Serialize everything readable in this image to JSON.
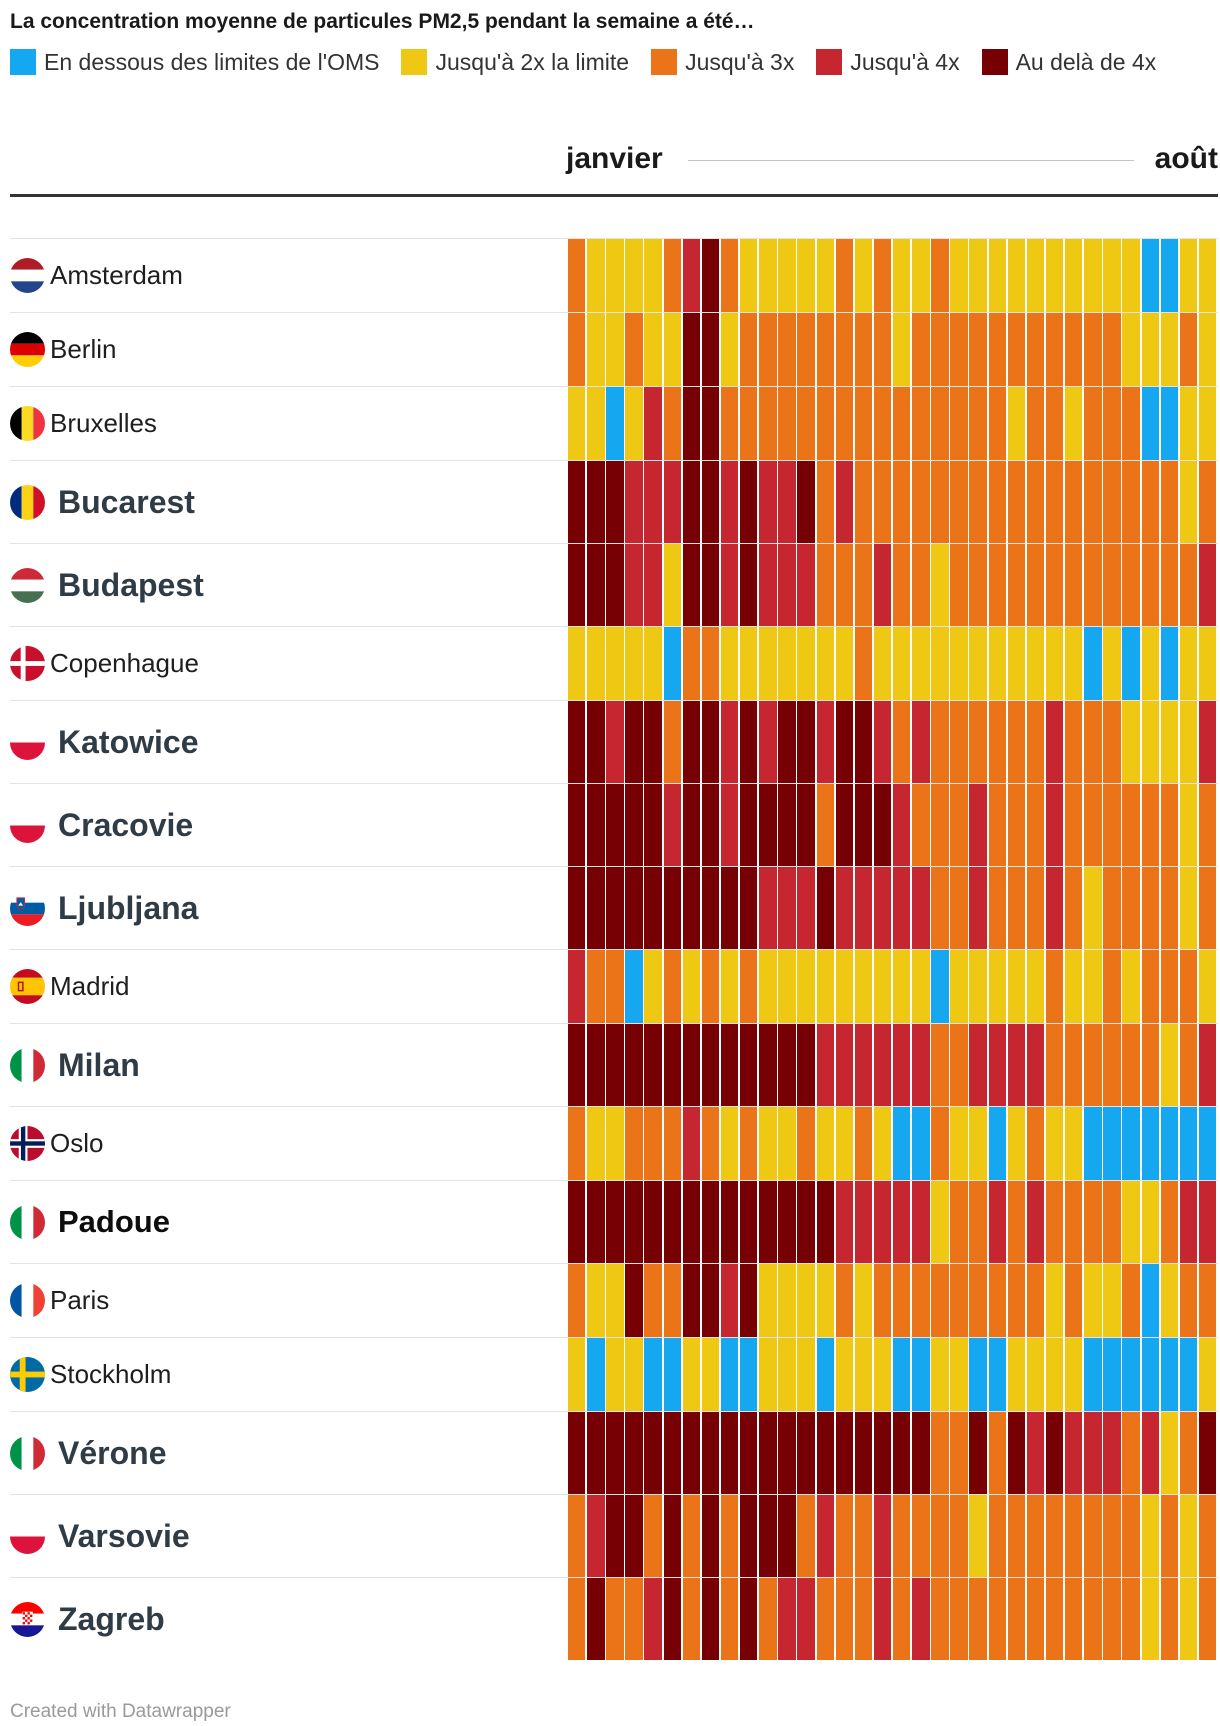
{
  "chart_data": {
    "type": "heatmap",
    "title": "La concentration moyenne de particules PM2,5 pendant la semaine a été…",
    "x_start_label": "janvier",
    "x_end_label": "août",
    "legend": [
      {
        "level": 0,
        "label": "En dessous des limites de l'OMS",
        "color": "#15a8f0"
      },
      {
        "level": 1,
        "label": "Jusqu'à 2x la limite",
        "color": "#efc813"
      },
      {
        "level": 2,
        "label": "Jusqu'à 3x",
        "color": "#ea7417"
      },
      {
        "level": 3,
        "label": "Jusqu'à 4x",
        "color": "#c6262f"
      },
      {
        "level": 4,
        "label": "Au delà de 4x",
        "color": "#760003"
      }
    ],
    "rows": [
      {
        "name": "Amsterdam",
        "flag_icon": "netherlands-flag-icon",
        "highlight": false,
        "values": [
          2,
          1,
          1,
          1,
          1,
          2,
          3,
          4,
          2,
          1,
          1,
          1,
          1,
          1,
          2,
          1,
          2,
          1,
          1,
          2,
          1,
          1,
          1,
          1,
          1,
          1,
          1,
          1,
          1,
          1,
          0,
          0,
          1,
          1
        ]
      },
      {
        "name": "Berlin",
        "flag_icon": "germany-flag-icon",
        "highlight": false,
        "values": [
          2,
          1,
          1,
          2,
          1,
          1,
          4,
          4,
          1,
          2,
          2,
          2,
          2,
          2,
          2,
          2,
          2,
          1,
          2,
          2,
          2,
          2,
          2,
          2,
          2,
          2,
          2,
          2,
          2,
          1,
          1,
          1,
          2,
          1
        ]
      },
      {
        "name": "Bruxelles",
        "flag_icon": "belgium-flag-icon",
        "highlight": false,
        "values": [
          1,
          1,
          0,
          1,
          3,
          2,
          4,
          4,
          2,
          2,
          2,
          2,
          2,
          2,
          2,
          2,
          2,
          2,
          2,
          2,
          2,
          2,
          2,
          1,
          2,
          2,
          1,
          2,
          2,
          2,
          0,
          0,
          1,
          1
        ]
      },
      {
        "name": "Bucarest",
        "flag_icon": "romania-flag-icon",
        "highlight": true,
        "values": [
          4,
          4,
          4,
          3,
          3,
          3,
          4,
          4,
          3,
          4,
          3,
          3,
          4,
          2,
          3,
          2,
          2,
          2,
          2,
          2,
          2,
          2,
          2,
          2,
          2,
          2,
          2,
          2,
          2,
          2,
          2,
          2,
          1,
          2
        ]
      },
      {
        "name": "Budapest",
        "flag_icon": "hungary-flag-icon",
        "highlight": true,
        "values": [
          4,
          4,
          4,
          3,
          3,
          1,
          4,
          4,
          3,
          4,
          3,
          3,
          3,
          2,
          2,
          2,
          3,
          2,
          2,
          1,
          2,
          2,
          2,
          2,
          2,
          2,
          2,
          2,
          2,
          2,
          2,
          2,
          2,
          3
        ]
      },
      {
        "name": "Copenhague",
        "flag_icon": "denmark-flag-icon",
        "highlight": false,
        "values": [
          1,
          1,
          1,
          1,
          1,
          0,
          2,
          2,
          1,
          1,
          1,
          1,
          1,
          1,
          1,
          2,
          1,
          1,
          1,
          1,
          1,
          1,
          1,
          1,
          1,
          1,
          1,
          0,
          1,
          0,
          1,
          0,
          1,
          1
        ]
      },
      {
        "name": "Katowice",
        "flag_icon": "poland-flag-icon",
        "highlight": true,
        "values": [
          4,
          4,
          3,
          4,
          4,
          2,
          4,
          4,
          3,
          4,
          3,
          4,
          4,
          3,
          4,
          4,
          3,
          2,
          3,
          2,
          2,
          2,
          2,
          2,
          2,
          3,
          2,
          2,
          2,
          1,
          1,
          1,
          1,
          3
        ]
      },
      {
        "name": "Cracovie",
        "flag_icon": "poland-flag-icon",
        "highlight": true,
        "values": [
          4,
          4,
          4,
          4,
          4,
          3,
          4,
          4,
          3,
          4,
          4,
          4,
          4,
          2,
          4,
          4,
          4,
          3,
          2,
          2,
          2,
          3,
          2,
          2,
          2,
          3,
          2,
          2,
          2,
          2,
          2,
          2,
          1,
          2
        ]
      },
      {
        "name": "Ljubljana",
        "flag_icon": "slovenia-flag-icon",
        "highlight": true,
        "values": [
          4,
          4,
          4,
          4,
          4,
          4,
          4,
          4,
          4,
          4,
          3,
          3,
          3,
          4,
          3,
          3,
          3,
          3,
          3,
          2,
          2,
          3,
          2,
          2,
          2,
          3,
          2,
          1,
          2,
          2,
          2,
          2,
          1,
          2
        ]
      },
      {
        "name": "Madrid",
        "flag_icon": "spain-flag-icon",
        "highlight": false,
        "values": [
          3,
          2,
          2,
          0,
          1,
          2,
          1,
          2,
          1,
          2,
          1,
          1,
          1,
          1,
          1,
          1,
          1,
          1,
          1,
          0,
          1,
          1,
          1,
          1,
          1,
          2,
          1,
          1,
          2,
          1,
          2,
          2,
          2,
          1
        ]
      },
      {
        "name": "Milan",
        "flag_icon": "italy-flag-icon",
        "highlight": true,
        "values": [
          4,
          4,
          4,
          4,
          4,
          4,
          4,
          4,
          4,
          4,
          4,
          4,
          4,
          3,
          3,
          3,
          3,
          3,
          3,
          2,
          2,
          3,
          3,
          3,
          3,
          2,
          2,
          2,
          2,
          2,
          2,
          1,
          2,
          3
        ]
      },
      {
        "name": "Oslo",
        "flag_icon": "norway-flag-icon",
        "highlight": false,
        "values": [
          2,
          1,
          1,
          2,
          2,
          2,
          3,
          2,
          1,
          2,
          1,
          1,
          2,
          1,
          1,
          2,
          1,
          0,
          0,
          2,
          1,
          1,
          0,
          1,
          2,
          1,
          1,
          0,
          0,
          0,
          0,
          0,
          0,
          0
        ]
      },
      {
        "name": "Padoue",
        "flag_icon": "italy-flag-icon",
        "highlight": true,
        "dark_label": true,
        "values": [
          4,
          4,
          4,
          4,
          4,
          4,
          4,
          4,
          4,
          4,
          4,
          4,
          4,
          4,
          3,
          3,
          3,
          3,
          3,
          1,
          2,
          2,
          3,
          2,
          3,
          2,
          2,
          2,
          2,
          1,
          1,
          2,
          3,
          3
        ]
      },
      {
        "name": "Paris",
        "flag_icon": "france-flag-icon",
        "highlight": false,
        "values": [
          2,
          1,
          1,
          4,
          2,
          2,
          4,
          4,
          3,
          4,
          1,
          1,
          1,
          1,
          2,
          1,
          2,
          2,
          2,
          2,
          2,
          2,
          2,
          2,
          2,
          1,
          2,
          1,
          1,
          2,
          0,
          1,
          2,
          2
        ]
      },
      {
        "name": "Stockholm",
        "flag_icon": "sweden-flag-icon",
        "highlight": false,
        "values": [
          1,
          0,
          1,
          1,
          0,
          0,
          1,
          1,
          0,
          0,
          1,
          1,
          1,
          0,
          1,
          1,
          1,
          0,
          0,
          1,
          1,
          0,
          0,
          1,
          1,
          1,
          1,
          0,
          0,
          0,
          0,
          0,
          0,
          1
        ]
      },
      {
        "name": "Vérone",
        "flag_icon": "italy-flag-icon",
        "highlight": true,
        "values": [
          4,
          4,
          4,
          4,
          4,
          4,
          4,
          4,
          4,
          4,
          4,
          4,
          4,
          4,
          4,
          4,
          4,
          4,
          4,
          2,
          2,
          4,
          2,
          4,
          3,
          4,
          3,
          3,
          3,
          2,
          3,
          1,
          2,
          4
        ]
      },
      {
        "name": "Varsovie",
        "flag_icon": "poland-flag-icon",
        "highlight": true,
        "values": [
          2,
          3,
          4,
          4,
          2,
          4,
          2,
          4,
          2,
          4,
          4,
          4,
          2,
          3,
          2,
          2,
          3,
          2,
          2,
          2,
          2,
          1,
          2,
          2,
          2,
          2,
          2,
          2,
          2,
          2,
          1,
          2,
          1,
          2
        ]
      },
      {
        "name": "Zagreb",
        "flag_icon": "croatia-flag-icon",
        "highlight": true,
        "values": [
          2,
          4,
          2,
          2,
          3,
          4,
          2,
          4,
          2,
          4,
          2,
          3,
          3,
          2,
          2,
          2,
          3,
          2,
          3,
          2,
          2,
          2,
          2,
          2,
          2,
          2,
          2,
          2,
          2,
          2,
          1,
          2,
          1,
          2
        ]
      }
    ]
  },
  "footer": {
    "credit": "Created with Datawrapper"
  }
}
